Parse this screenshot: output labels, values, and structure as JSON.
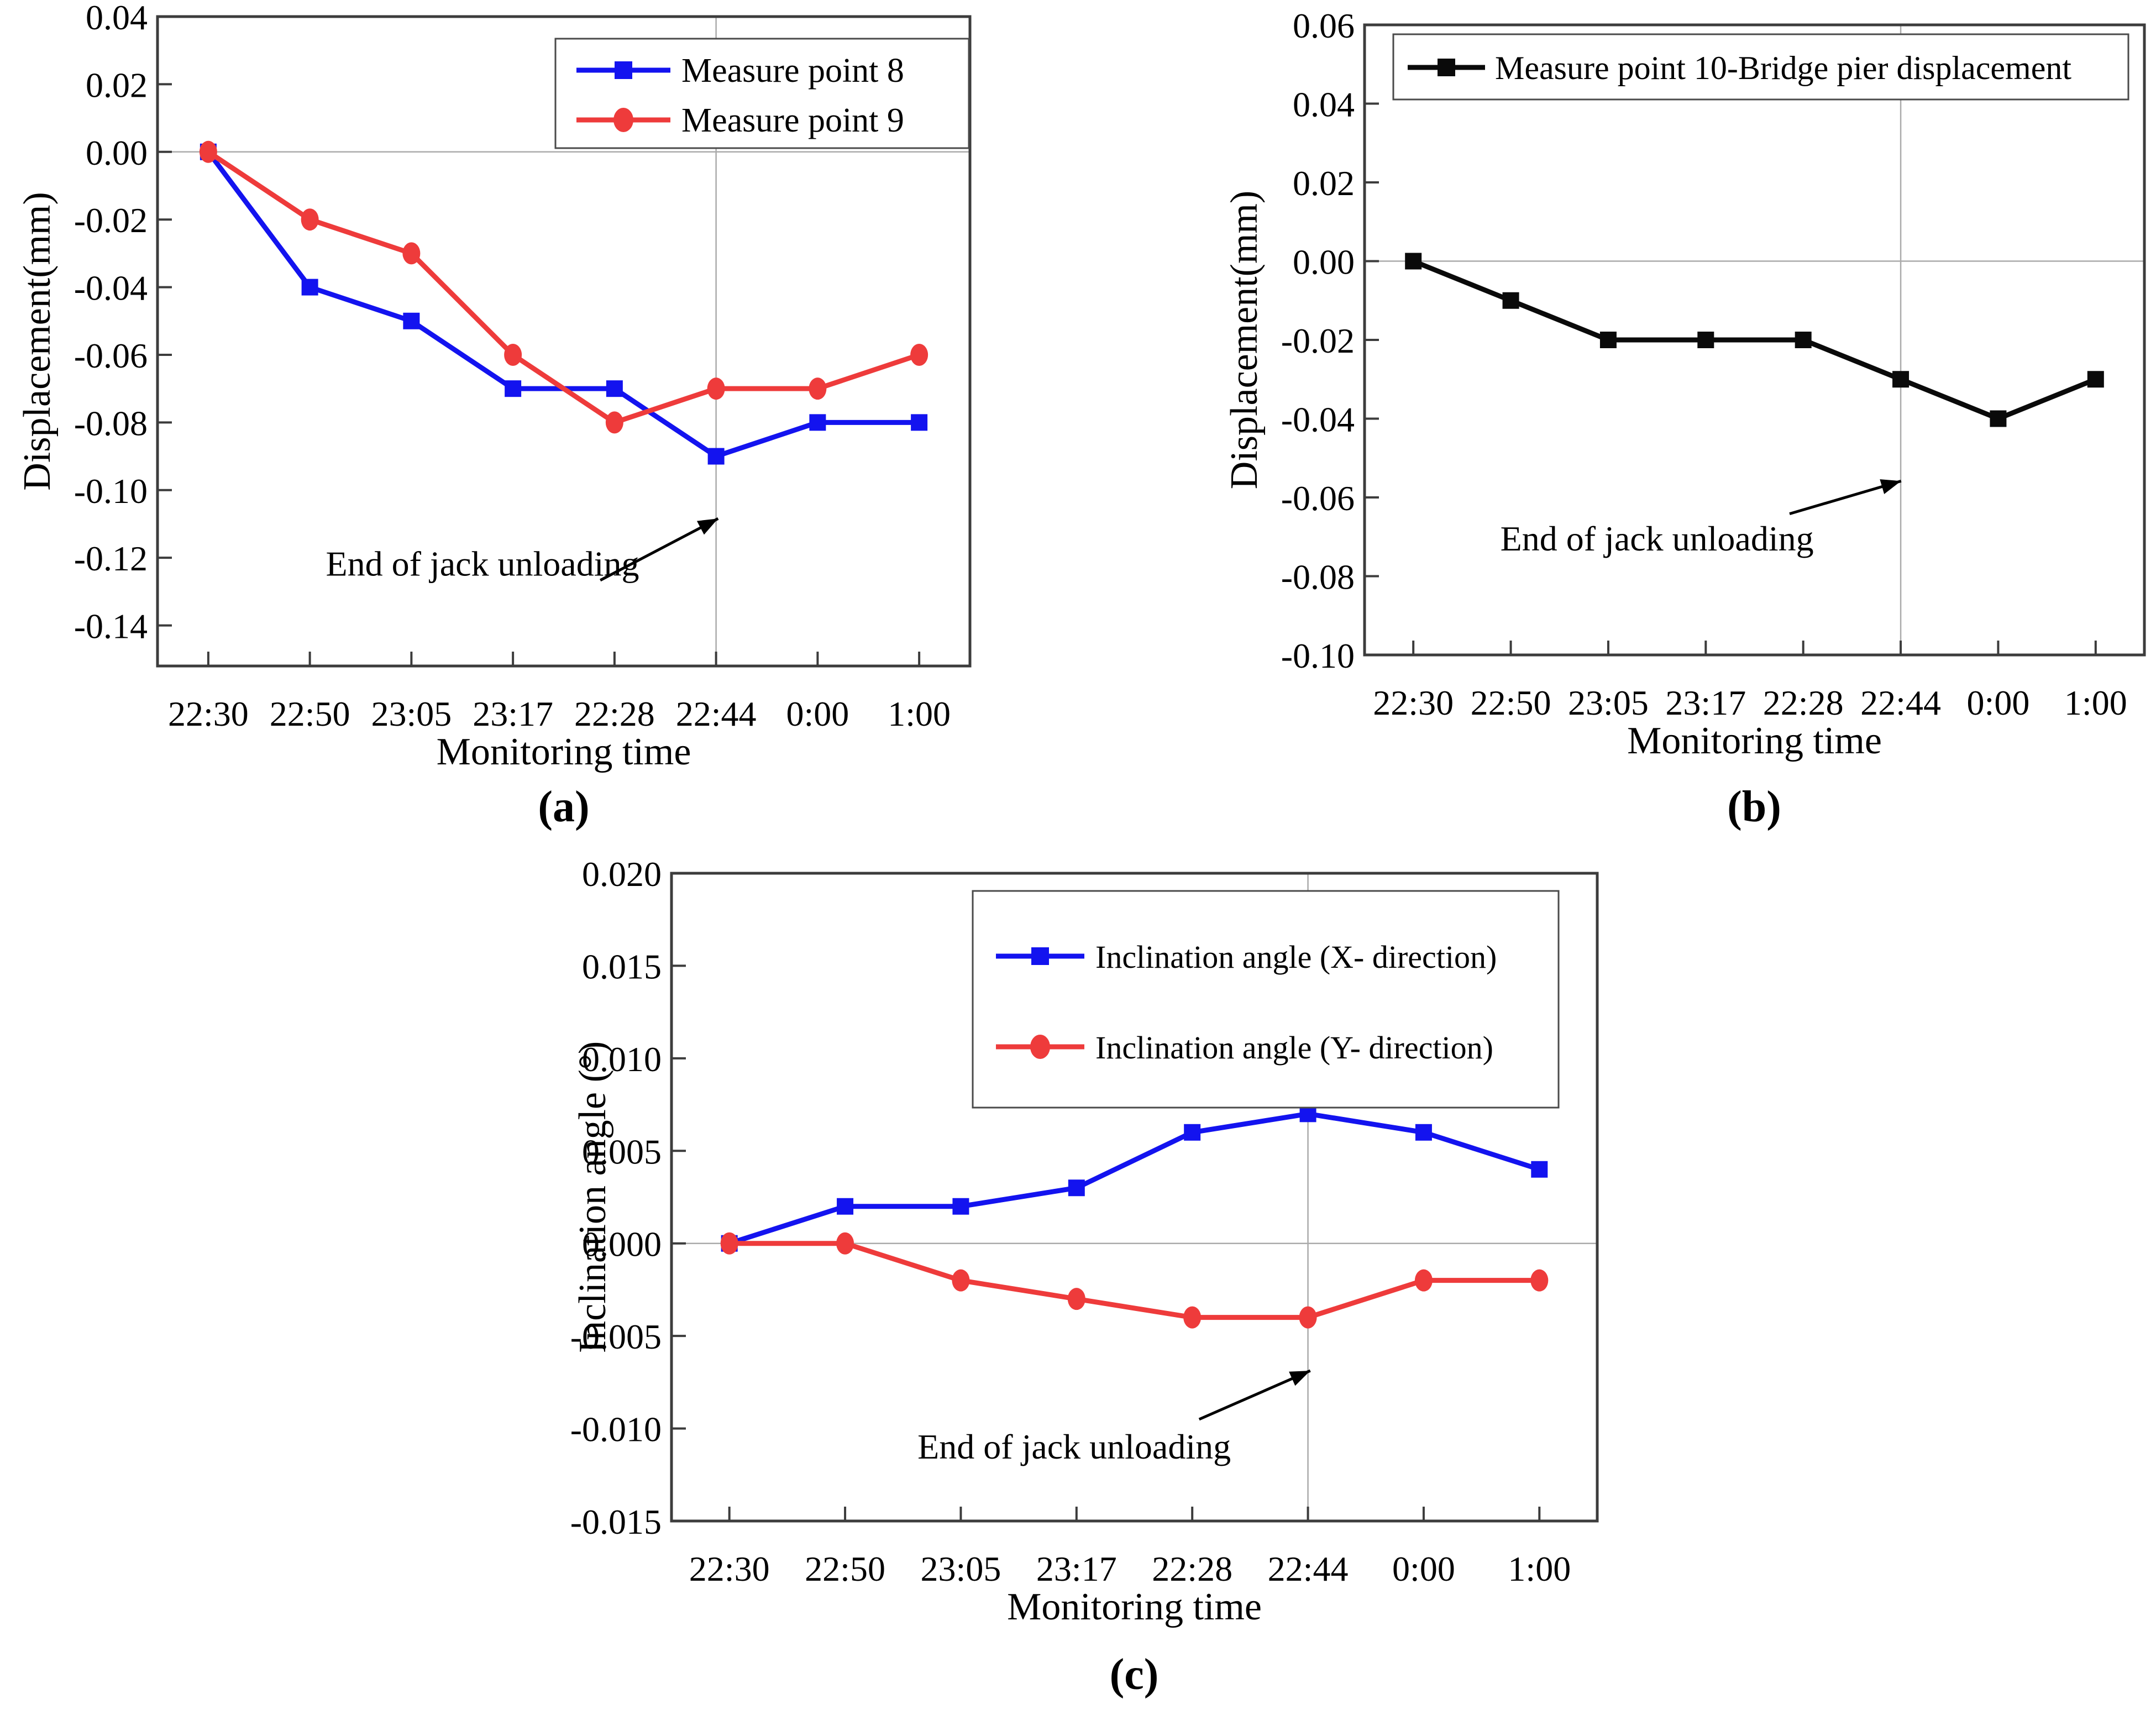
{
  "figure": {
    "background": "#ffffff",
    "annotation_text": "End of jack unloading"
  },
  "chart_data": [
    {
      "id": "a",
      "type": "line",
      "caption": "(a)",
      "xlabel": "Monitoring time",
      "ylabel": "Displacement(mm)",
      "categories": [
        "22:30",
        "22:50",
        "23:05",
        "23:17",
        "22:28",
        "22:44",
        "0:00",
        "1:00"
      ],
      "y_tick_labels": [
        "0.04",
        "0.02",
        "0.00",
        "-0.02",
        "-0.04",
        "-0.06",
        "-0.08",
        "-0.10",
        "-0.12",
        "-0.14"
      ],
      "y_tick_values": [
        0.04,
        0.02,
        0,
        -0.02,
        -0.04,
        -0.06,
        -0.08,
        -0.1,
        -0.12,
        -0.14
      ],
      "ylim": [
        -0.152,
        0.04
      ],
      "grid": {
        "h_value": 0,
        "v_category_index": 5
      },
      "legend_position": "top-right",
      "annotation": "End of jack unloading",
      "series": [
        {
          "name": "Measure point 8",
          "color": "#1313ef",
          "marker": "square",
          "values": [
            0.0,
            -0.04,
            -0.05,
            -0.07,
            -0.07,
            -0.09,
            -0.08,
            -0.08
          ]
        },
        {
          "name": "Measure point 9",
          "color": "#ee3b3b",
          "marker": "circle",
          "values": [
            0.0,
            -0.02,
            -0.03,
            -0.06,
            -0.08,
            -0.07,
            -0.07,
            -0.06
          ]
        }
      ]
    },
    {
      "id": "b",
      "type": "line",
      "caption": "(b)",
      "xlabel": "Monitoring time",
      "ylabel": "Displacement(mm)",
      "categories": [
        "22:30",
        "22:50",
        "23:05",
        "23:17",
        "22:28",
        "22:44",
        "0:00",
        "1:00"
      ],
      "y_tick_labels": [
        "0.06",
        "0.04",
        "0.02",
        "0.00",
        "-0.02",
        "-0.04",
        "-0.06",
        "-0.08",
        "-0.10"
      ],
      "y_tick_values": [
        0.06,
        0.04,
        0.02,
        0,
        -0.02,
        -0.04,
        -0.06,
        -0.08,
        -0.1
      ],
      "ylim": [
        -0.1,
        0.06
      ],
      "grid": {
        "h_value": 0,
        "v_category_index": 5
      },
      "legend_position": "top",
      "annotation": "End of jack unloading",
      "series": [
        {
          "name": "Measure point 10-Bridge pier displacement",
          "color": "#0a0a0a",
          "marker": "square",
          "values": [
            0.0,
            -0.01,
            -0.02,
            -0.02,
            -0.02,
            -0.03,
            -0.04,
            -0.03
          ]
        }
      ]
    },
    {
      "id": "c",
      "type": "line",
      "caption": "(c)",
      "xlabel": "Monitoring time",
      "ylabel": "Inclination angle (°)",
      "categories": [
        "22:30",
        "22:50",
        "23:05",
        "23:17",
        "22:28",
        "22:44",
        "0:00",
        "1:00"
      ],
      "y_tick_labels": [
        "0.020",
        "0.015",
        "0.010",
        "0.005",
        "0.000",
        "-0.005",
        "-0.010",
        "-0.015"
      ],
      "y_tick_values": [
        0.02,
        0.015,
        0.01,
        0.005,
        0,
        -0.005,
        -0.01,
        -0.015
      ],
      "ylim": [
        -0.015,
        0.02
      ],
      "grid": {
        "h_value": 0,
        "v_category_index": 5
      },
      "legend_position": "top",
      "annotation": "End of jack unloading",
      "series": [
        {
          "name": "Inclination angle (X- direction)",
          "color": "#1313ef",
          "marker": "square",
          "values": [
            0.0,
            0.002,
            0.002,
            0.003,
            0.006,
            0.007,
            0.006,
            0.004
          ]
        },
        {
          "name": "Inclination angle (Y- direction)",
          "color": "#ee3b3b",
          "marker": "circle",
          "values": [
            0.0,
            0.0,
            -0.002,
            -0.003,
            -0.004,
            -0.004,
            -0.002,
            -0.002
          ]
        }
      ]
    }
  ]
}
